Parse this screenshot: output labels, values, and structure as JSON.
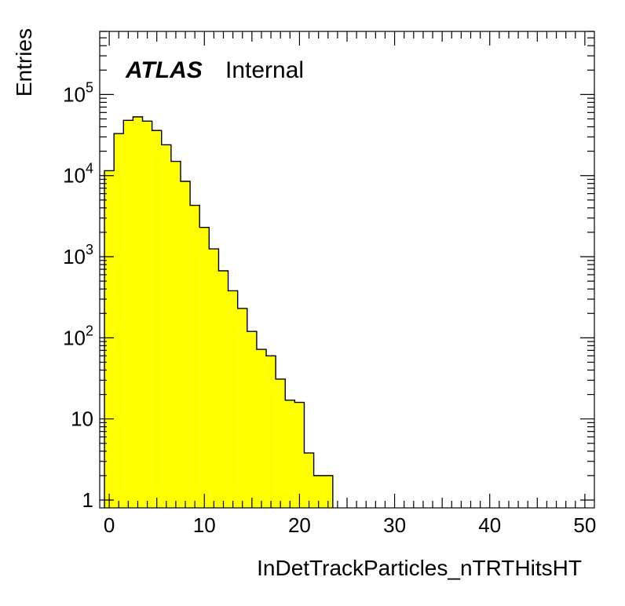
{
  "chart_data": {
    "type": "histogram",
    "xlabel": "InDetTrackParticles_nTRTHitsHT",
    "ylabel": "Entries",
    "label_bold": "ATLAS",
    "label_normal": "Internal",
    "fill_color": "#ffff00",
    "line_color": "#000000",
    "xlim": [
      -1,
      51
    ],
    "ylim": [
      0.8,
      600000
    ],
    "y_scale": "log",
    "x_ticks": [
      0,
      10,
      20,
      30,
      40,
      50
    ],
    "x_tick_labels": [
      "0",
      "10",
      "20",
      "30",
      "40",
      "50"
    ],
    "y_ticks": [
      1,
      10,
      100,
      1000,
      10000,
      100000
    ],
    "y_tick_labels": [
      {
        "base": "1",
        "exp": ""
      },
      {
        "base": "10",
        "exp": ""
      },
      {
        "base": "10",
        "exp": "2"
      },
      {
        "base": "10",
        "exp": "3"
      },
      {
        "base": "10",
        "exp": "4"
      },
      {
        "base": "10",
        "exp": "5"
      }
    ],
    "bin_edges": [
      -0.5,
      0.5,
      1.5,
      2.5,
      3.5,
      4.5,
      5.5,
      6.5,
      7.5,
      8.5,
      9.5,
      10.5,
      11.5,
      12.5,
      13.5,
      14.5,
      15.5,
      16.5,
      17.5,
      18.5,
      19.5,
      20.5,
      21.5,
      22.5,
      23.5
    ],
    "values": [
      11500,
      33000,
      48000,
      53000,
      47000,
      36000,
      24000,
      15000,
      8500,
      4300,
      2300,
      1250,
      670,
      380,
      230,
      120,
      72,
      60,
      31,
      17,
      16,
      3.8,
      2.0,
      2.0
    ]
  }
}
